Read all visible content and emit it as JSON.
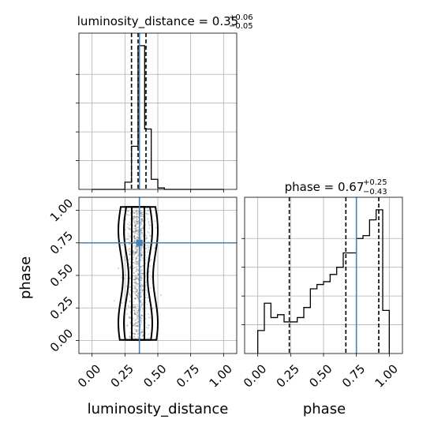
{
  "chart_data": [
    {
      "type": "histogram",
      "panel": "luminosity_distance marginal",
      "title_main": "luminosity_distance = 0.35",
      "title_sup": "+0.06",
      "title_sub": "−0.05",
      "x": [
        0.0,
        0.05,
        0.1,
        0.15,
        0.2,
        0.25,
        0.3,
        0.35,
        0.4,
        0.45,
        0.5,
        0.55,
        0.6,
        0.65,
        0.7,
        0.75,
        0.8,
        0.85,
        0.9,
        0.95,
        1.0
      ],
      "values": [
        0,
        0,
        0,
        0,
        0,
        0.05,
        0.3,
        1.0,
        0.42,
        0.07,
        0.01,
        0,
        0,
        0,
        0,
        0,
        0,
        0,
        0,
        0
      ],
      "xlim": [
        -0.1,
        1.1
      ],
      "quantiles": [
        0.3,
        0.35,
        0.41
      ],
      "truth": 0.36,
      "grid": true
    },
    {
      "type": "histogram",
      "panel": "phase marginal",
      "title_main": "phase = 0.67",
      "title_sup": "+0.25",
      "title_sub": "−0.43",
      "x": [
        0.0,
        0.05,
        0.1,
        0.15,
        0.2,
        0.25,
        0.3,
        0.35,
        0.4,
        0.45,
        0.5,
        0.55,
        0.6,
        0.65,
        0.7,
        0.75,
        0.8,
        0.85,
        0.9,
        0.95,
        1.0
      ],
      "values": [
        0.16,
        0.35,
        0.25,
        0.27,
        0.22,
        0.22,
        0.25,
        0.32,
        0.45,
        0.48,
        0.5,
        0.55,
        0.6,
        0.7,
        0.7,
        0.8,
        0.82,
        0.93,
        1.0,
        0.3
      ],
      "xlim": [
        -0.1,
        1.1
      ],
      "quantiles": [
        0.24,
        0.67,
        0.92
      ],
      "truth": 0.75,
      "grid": true
    },
    {
      "type": "scatter",
      "panel": "luminosity_distance vs phase 2D",
      "xlabel": "luminosity_distance",
      "ylabel": "phase",
      "xlim": [
        -0.1,
        1.1
      ],
      "ylim": [
        -0.1,
        1.1
      ],
      "xticks": [
        "0.00",
        "0.25",
        "0.50",
        "0.75",
        "1.00"
      ],
      "yticks": [
        "0.00",
        "0.25",
        "0.50",
        "0.75",
        "1.00"
      ],
      "point_cloud": {
        "x_center": 0.35,
        "x_spread": 0.045,
        "y_range": [
          0.0,
          1.0
        ]
      },
      "truth": {
        "x": 0.36,
        "y": 0.75
      },
      "grid": true
    }
  ],
  "bottom_right": {
    "xlabel": "phase",
    "xticks": [
      "0.00",
      "0.25",
      "0.50",
      "0.75",
      "1.00"
    ]
  },
  "colors": {
    "truth": "#4682b4",
    "hist": "#000000",
    "grid": "#b0b0b0"
  }
}
